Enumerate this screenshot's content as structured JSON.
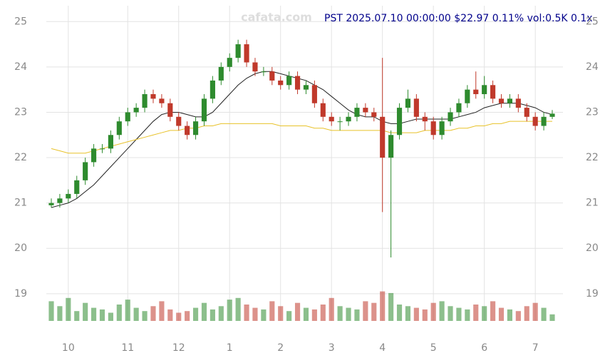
{
  "chart_data": {
    "type": "candlestick",
    "header": "PST 2025.07.10 00:00:00 $22.97 0.11% vol:0.5K 0.1x",
    "watermark": "cafata.com",
    "categories": [
      null,
      null,
      "10",
      null,
      null,
      null,
      null,
      null,
      null,
      "11",
      null,
      null,
      null,
      null,
      null,
      "12",
      null,
      null,
      null,
      null,
      null,
      "1",
      null,
      null,
      null,
      null,
      null,
      "2",
      null,
      null,
      null,
      null,
      null,
      "3",
      null,
      null,
      null,
      null,
      null,
      "4",
      null,
      null,
      null,
      null,
      null,
      "5",
      null,
      null,
      null,
      null,
      null,
      "6",
      null,
      null,
      null,
      null,
      null,
      "7",
      null,
      null
    ],
    "open": [
      20.95,
      21.0,
      21.1,
      21.2,
      21.5,
      21.9,
      22.2,
      22.2,
      22.5,
      22.8,
      23.0,
      23.1,
      23.4,
      23.3,
      23.2,
      22.9,
      22.7,
      22.5,
      22.8,
      23.3,
      23.7,
      24.0,
      24.2,
      24.5,
      24.1,
      23.9,
      23.9,
      23.7,
      23.6,
      23.8,
      23.5,
      23.6,
      23.2,
      22.9,
      22.8,
      22.8,
      22.9,
      23.1,
      23.0,
      22.9,
      22.0,
      22.5,
      23.1,
      23.3,
      22.9,
      22.8,
      22.5,
      22.8,
      23.0,
      23.2,
      23.5,
      23.4,
      23.6,
      23.3,
      23.2,
      23.3,
      23.1,
      22.9,
      22.7,
      22.9
    ],
    "high": [
      21.1,
      21.2,
      21.3,
      21.6,
      22.0,
      22.3,
      22.3,
      22.6,
      22.9,
      23.1,
      23.2,
      23.5,
      23.5,
      23.4,
      23.3,
      23.0,
      22.8,
      22.9,
      23.4,
      23.8,
      24.1,
      24.3,
      24.6,
      24.6,
      24.2,
      24.0,
      24.0,
      23.8,
      23.9,
      23.9,
      23.7,
      23.7,
      23.3,
      23.0,
      22.9,
      23.0,
      23.2,
      23.2,
      23.1,
      24.2,
      22.6,
      23.2,
      23.5,
      23.4,
      23.0,
      22.9,
      22.9,
      23.1,
      23.3,
      23.6,
      23.9,
      23.8,
      23.7,
      23.4,
      23.4,
      23.4,
      23.2,
      23.0,
      23.0,
      23.05
    ],
    "low": [
      20.9,
      20.9,
      21.0,
      21.1,
      21.4,
      21.8,
      22.1,
      22.1,
      22.4,
      22.7,
      22.9,
      23.0,
      23.2,
      23.1,
      22.8,
      22.6,
      22.4,
      22.4,
      22.7,
      23.2,
      23.6,
      23.9,
      24.1,
      24.0,
      23.8,
      23.8,
      23.6,
      23.5,
      23.5,
      23.4,
      23.4,
      23.1,
      22.8,
      22.7,
      22.6,
      22.7,
      22.8,
      22.9,
      22.8,
      20.8,
      19.8,
      22.4,
      23.0,
      22.8,
      22.6,
      22.4,
      22.4,
      22.7,
      22.9,
      23.1,
      23.3,
      23.3,
      23.2,
      23.1,
      23.1,
      23.0,
      22.8,
      22.6,
      22.6,
      22.85
    ],
    "close": [
      21.0,
      21.1,
      21.2,
      21.5,
      21.9,
      22.2,
      22.2,
      22.5,
      22.8,
      23.0,
      23.1,
      23.4,
      23.3,
      23.2,
      22.9,
      22.7,
      22.5,
      22.8,
      23.3,
      23.7,
      24.0,
      24.2,
      24.5,
      24.1,
      23.9,
      23.9,
      23.7,
      23.6,
      23.8,
      23.5,
      23.6,
      23.2,
      22.9,
      22.8,
      22.8,
      22.9,
      23.1,
      23.0,
      22.9,
      22.0,
      22.5,
      23.1,
      23.3,
      22.9,
      22.8,
      22.5,
      22.8,
      23.0,
      23.2,
      23.5,
      23.4,
      23.6,
      23.3,
      23.2,
      23.3,
      23.1,
      22.9,
      22.7,
      22.9,
      22.97
    ],
    "up_color": "#2e8b2e",
    "down_color": "#c0392b",
    "lines": [
      {
        "color": "#222222",
        "values": [
          20.9,
          20.95,
          21.0,
          21.1,
          21.25,
          21.4,
          21.6,
          21.8,
          22.0,
          22.2,
          22.4,
          22.6,
          22.8,
          22.95,
          23.0,
          23.0,
          22.95,
          22.9,
          22.9,
          23.0,
          23.2,
          23.4,
          23.6,
          23.75,
          23.85,
          23.9,
          23.9,
          23.85,
          23.8,
          23.75,
          23.7,
          23.6,
          23.5,
          23.35,
          23.2,
          23.05,
          22.95,
          22.9,
          22.9,
          22.8,
          22.75,
          22.75,
          22.8,
          22.85,
          22.85,
          22.85,
          22.85,
          22.85,
          22.9,
          22.95,
          23.0,
          23.1,
          23.15,
          23.2,
          23.2,
          23.2,
          23.15,
          23.1,
          23.0,
          22.95
        ]
      },
      {
        "color": "#e8c22a",
        "values": [
          22.2,
          22.15,
          22.1,
          22.1,
          22.1,
          22.15,
          22.2,
          22.25,
          22.3,
          22.35,
          22.4,
          22.45,
          22.5,
          22.55,
          22.6,
          22.6,
          22.65,
          22.65,
          22.7,
          22.7,
          22.75,
          22.75,
          22.75,
          22.75,
          22.75,
          22.75,
          22.75,
          22.7,
          22.7,
          22.7,
          22.7,
          22.65,
          22.65,
          22.6,
          22.6,
          22.6,
          22.6,
          22.6,
          22.6,
          22.6,
          22.55,
          22.55,
          22.55,
          22.55,
          22.6,
          22.6,
          22.6,
          22.6,
          22.65,
          22.65,
          22.7,
          22.7,
          22.75,
          22.75,
          22.8,
          22.8,
          22.8,
          22.8,
          22.8,
          22.8
        ]
      }
    ],
    "volume": {
      "ylim": [
        0,
        100
      ],
      "values": [
        60,
        45,
        70,
        30,
        55,
        40,
        35,
        25,
        50,
        65,
        40,
        30,
        45,
        60,
        35,
        25,
        30,
        40,
        55,
        35,
        45,
        65,
        70,
        50,
        40,
        35,
        60,
        45,
        30,
        55,
        40,
        35,
        50,
        70,
        45,
        40,
        35,
        60,
        55,
        90,
        85,
        50,
        45,
        40,
        35,
        55,
        60,
        45,
        40,
        35,
        50,
        45,
        60,
        40,
        35,
        30,
        45,
        55,
        40,
        20
      ]
    },
    "ylim": [
      18.4,
      25.35
    ],
    "yticks": [
      19,
      20,
      21,
      22,
      23,
      24,
      25
    ],
    "grid": true
  }
}
